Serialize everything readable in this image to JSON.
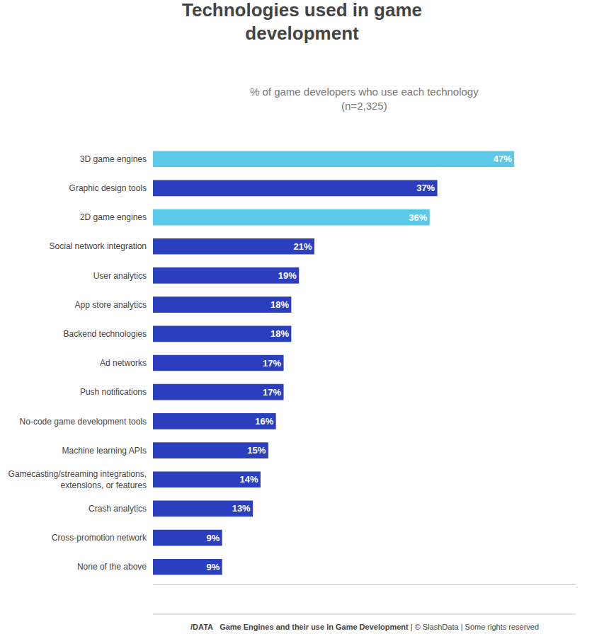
{
  "chart_data": {
    "type": "bar",
    "orientation": "horizontal",
    "title": "Technologies used in game\ndevelopment",
    "subtitle": "% of game developers who use each technology\n(n=2,325)",
    "categories": [
      "3D game engines",
      "Graphic design tools",
      "2D game engines",
      "Social network integration",
      "User analytics",
      "App store analytics",
      "Backend technologies",
      "Ad networks",
      "Push notifications",
      "No-code game development tools",
      "Machine learning APIs",
      "Gamecasting/streaming integrations,\nextensions, or features",
      "Crash analytics",
      "Cross-promotion network",
      "None of the above"
    ],
    "values": [
      47,
      37,
      36,
      21,
      19,
      18,
      18,
      17,
      17,
      16,
      15,
      14,
      13,
      9,
      9
    ],
    "value_labels": [
      "47%",
      "37%",
      "36%",
      "21%",
      "19%",
      "18%",
      "18%",
      "17%",
      "17%",
      "16%",
      "15%",
      "14%",
      "13%",
      "9%",
      "9%"
    ],
    "colors": [
      "#5bc8e8",
      "#2b3fbe",
      "#5bc8e8",
      "#2b3fbe",
      "#2b3fbe",
      "#2b3fbe",
      "#2b3fbe",
      "#2b3fbe",
      "#2b3fbe",
      "#2b3fbe",
      "#2b3fbe",
      "#2b3fbe",
      "#2b3fbe",
      "#2b3fbe",
      "#2b3fbe"
    ],
    "xlim": [
      0,
      55
    ],
    "grid": false,
    "data_labels": true,
    "tick_labels": "y",
    "annotations": [
      "/DATA",
      "Game Engines and their use in Game Development",
      "| © SlashData | Some rights reserved"
    ]
  }
}
